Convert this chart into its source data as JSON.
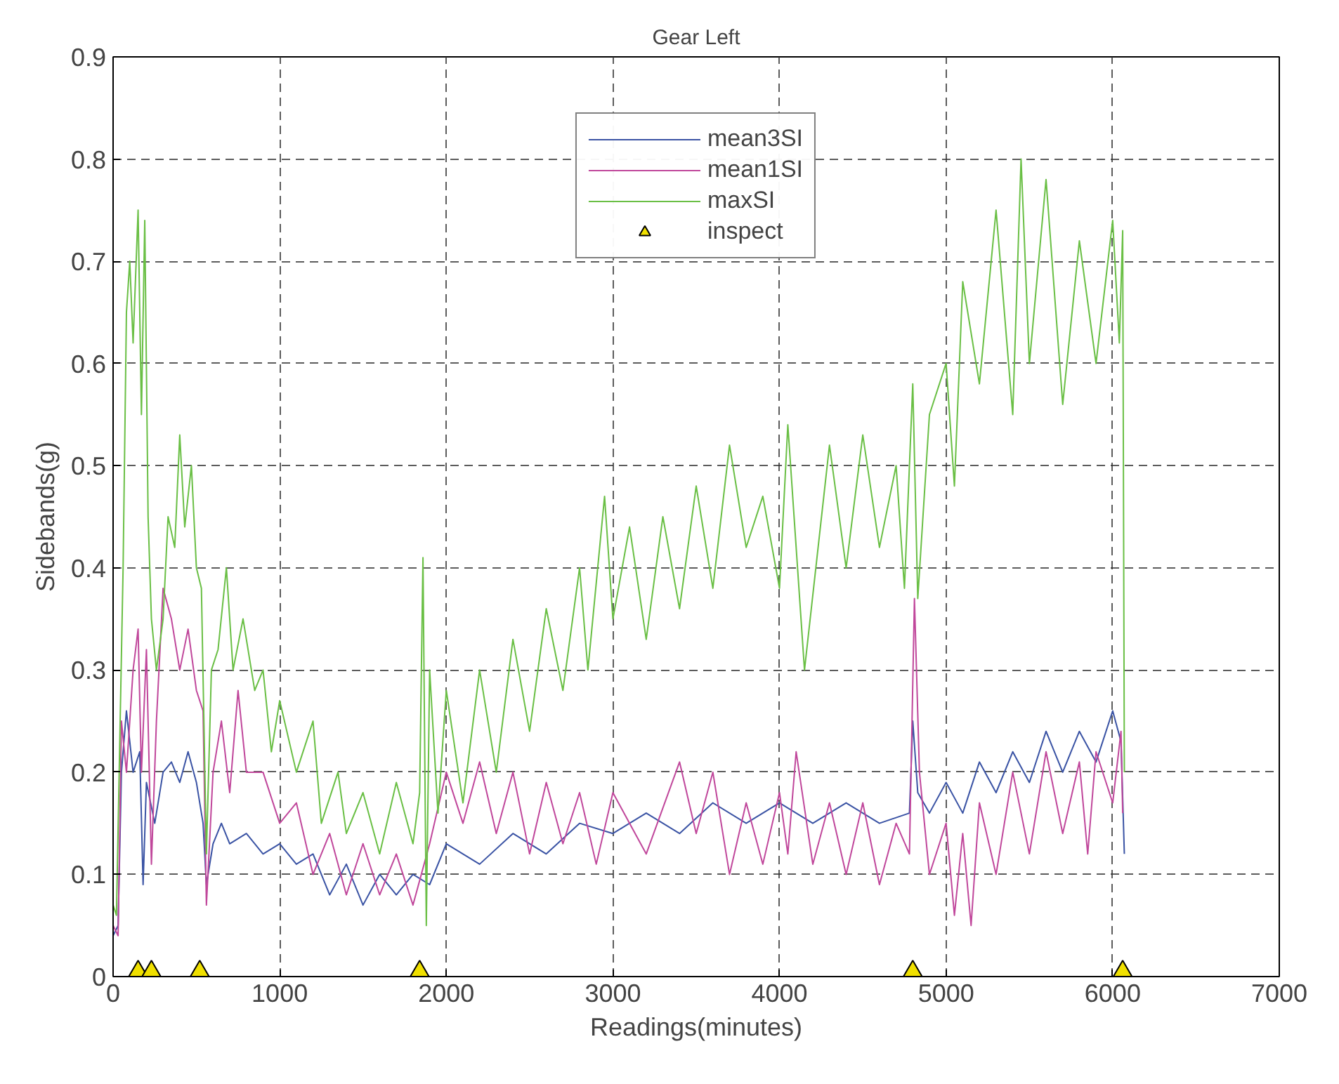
{
  "chart_data": {
    "type": "line",
    "title": "Gear Left",
    "xlabel": "Readings(minutes)",
    "ylabel": "Sidebands(g)",
    "xlim": [
      0,
      7000
    ],
    "ylim": [
      0,
      0.9
    ],
    "xticks": [
      0,
      1000,
      2000,
      3000,
      4000,
      5000,
      6000,
      7000
    ],
    "yticks": [
      0,
      0.1,
      0.2,
      0.3,
      0.4,
      0.5,
      0.6,
      0.7,
      0.8,
      0.9
    ],
    "grid": true,
    "legend": "top",
    "line_style": "solid",
    "series": [
      {
        "name": "mean3SI",
        "color": "#3a53a4",
        "x": [
          0,
          30,
          50,
          80,
          120,
          160,
          180,
          200,
          250,
          300,
          350,
          400,
          450,
          500,
          540,
          560,
          600,
          650,
          700,
          800,
          900,
          1000,
          1100,
          1200,
          1300,
          1400,
          1500,
          1600,
          1700,
          1800,
          1900,
          2000,
          2200,
          2400,
          2600,
          2800,
          3000,
          3200,
          3400,
          3600,
          3800,
          4000,
          4200,
          4400,
          4600,
          4780,
          4800,
          4830,
          4900,
          5000,
          5100,
          5200,
          5300,
          5400,
          5500,
          5600,
          5700,
          5800,
          5900,
          6000,
          6050,
          6070
        ],
        "values": [
          0.04,
          0.05,
          0.2,
          0.26,
          0.2,
          0.22,
          0.09,
          0.19,
          0.15,
          0.2,
          0.21,
          0.19,
          0.22,
          0.19,
          0.15,
          0.09,
          0.13,
          0.15,
          0.13,
          0.14,
          0.12,
          0.13,
          0.11,
          0.12,
          0.08,
          0.11,
          0.07,
          0.1,
          0.08,
          0.1,
          0.09,
          0.13,
          0.11,
          0.14,
          0.12,
          0.15,
          0.14,
          0.16,
          0.14,
          0.17,
          0.15,
          0.17,
          0.15,
          0.17,
          0.15,
          0.16,
          0.25,
          0.18,
          0.16,
          0.19,
          0.16,
          0.21,
          0.18,
          0.22,
          0.19,
          0.24,
          0.2,
          0.24,
          0.21,
          0.26,
          0.23,
          0.12
        ]
      },
      {
        "name": "mean1SI",
        "color": "#c0479b",
        "x": [
          0,
          30,
          50,
          80,
          120,
          150,
          170,
          200,
          230,
          260,
          300,
          350,
          400,
          450,
          500,
          540,
          560,
          600,
          650,
          700,
          750,
          800,
          900,
          1000,
          1100,
          1200,
          1300,
          1400,
          1500,
          1600,
          1700,
          1800,
          1900,
          2000,
          2100,
          2200,
          2300,
          2400,
          2500,
          2600,
          2700,
          2800,
          2900,
          3000,
          3200,
          3400,
          3500,
          3600,
          3700,
          3800,
          3900,
          4000,
          4050,
          4100,
          4200,
          4300,
          4400,
          4500,
          4600,
          4700,
          4780,
          4810,
          4840,
          4900,
          5000,
          5050,
          5100,
          5150,
          5200,
          5300,
          5400,
          5500,
          5600,
          5700,
          5800,
          5850,
          5900,
          6000,
          6050,
          6060
        ],
        "values": [
          0.05,
          0.04,
          0.25,
          0.2,
          0.3,
          0.34,
          0.2,
          0.32,
          0.11,
          0.25,
          0.38,
          0.35,
          0.3,
          0.34,
          0.28,
          0.26,
          0.07,
          0.2,
          0.25,
          0.18,
          0.28,
          0.2,
          0.2,
          0.15,
          0.17,
          0.1,
          0.14,
          0.08,
          0.13,
          0.08,
          0.12,
          0.07,
          0.13,
          0.2,
          0.15,
          0.21,
          0.14,
          0.2,
          0.12,
          0.19,
          0.13,
          0.18,
          0.11,
          0.18,
          0.12,
          0.21,
          0.14,
          0.2,
          0.1,
          0.17,
          0.11,
          0.18,
          0.12,
          0.22,
          0.11,
          0.17,
          0.1,
          0.17,
          0.09,
          0.15,
          0.12,
          0.37,
          0.2,
          0.1,
          0.15,
          0.06,
          0.14,
          0.05,
          0.17,
          0.1,
          0.2,
          0.12,
          0.22,
          0.14,
          0.21,
          0.12,
          0.22,
          0.17,
          0.24,
          0.16
        ]
      },
      {
        "name": "maxSI",
        "color": "#6abf45",
        "x": [
          0,
          20,
          60,
          80,
          100,
          120,
          150,
          170,
          190,
          210,
          230,
          260,
          300,
          330,
          370,
          400,
          430,
          470,
          500,
          530,
          560,
          590,
          630,
          680,
          720,
          780,
          850,
          900,
          950,
          1000,
          1100,
          1200,
          1250,
          1350,
          1400,
          1500,
          1600,
          1700,
          1800,
          1840,
          1860,
          1880,
          1900,
          1950,
          2000,
          2100,
          2200,
          2300,
          2400,
          2500,
          2600,
          2700,
          2800,
          2850,
          2950,
          3000,
          3100,
          3200,
          3300,
          3400,
          3500,
          3600,
          3700,
          3800,
          3900,
          4000,
          4050,
          4150,
          4300,
          4400,
          4500,
          4600,
          4700,
          4750,
          4800,
          4830,
          4900,
          5000,
          5050,
          5100,
          5200,
          5300,
          5400,
          5450,
          5500,
          5600,
          5700,
          5800,
          5900,
          6000,
          6040,
          6060,
          6070
        ],
        "values": [
          0.07,
          0.06,
          0.4,
          0.65,
          0.7,
          0.62,
          0.75,
          0.55,
          0.74,
          0.45,
          0.35,
          0.3,
          0.35,
          0.45,
          0.42,
          0.53,
          0.44,
          0.5,
          0.4,
          0.38,
          0.12,
          0.3,
          0.32,
          0.4,
          0.3,
          0.35,
          0.28,
          0.3,
          0.22,
          0.27,
          0.2,
          0.25,
          0.15,
          0.2,
          0.14,
          0.18,
          0.12,
          0.19,
          0.13,
          0.18,
          0.41,
          0.05,
          0.3,
          0.16,
          0.28,
          0.17,
          0.3,
          0.2,
          0.33,
          0.24,
          0.36,
          0.28,
          0.4,
          0.3,
          0.47,
          0.35,
          0.44,
          0.33,
          0.45,
          0.36,
          0.48,
          0.38,
          0.52,
          0.42,
          0.47,
          0.38,
          0.54,
          0.3,
          0.52,
          0.4,
          0.53,
          0.42,
          0.5,
          0.38,
          0.58,
          0.37,
          0.55,
          0.6,
          0.48,
          0.68,
          0.58,
          0.75,
          0.55,
          0.8,
          0.6,
          0.78,
          0.56,
          0.72,
          0.6,
          0.74,
          0.62,
          0.73,
          0.2
        ]
      },
      {
        "name": "inspect",
        "type": "scatter",
        "marker": "triangle",
        "color": "#f0e000",
        "x": [
          150,
          230,
          520,
          1840,
          4800,
          6060
        ],
        "values": [
          0,
          0,
          0,
          0,
          0,
          0
        ]
      }
    ]
  }
}
